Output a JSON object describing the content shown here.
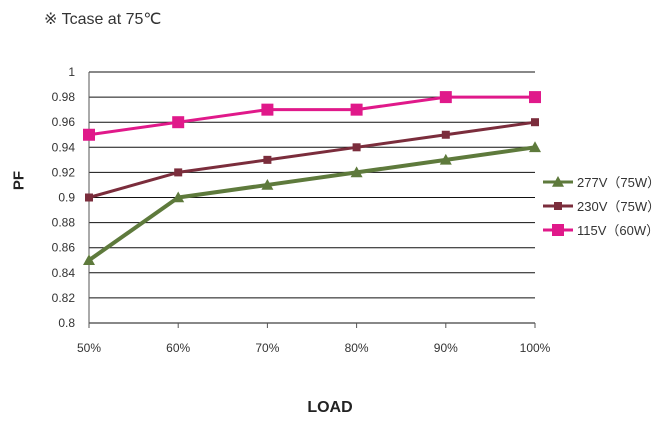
{
  "note": "※ Tcase at 75℃",
  "chart_data": {
    "type": "line",
    "categories": [
      "50%",
      "60%",
      "70%",
      "80%",
      "90%",
      "100%"
    ],
    "xlabel": "LOAD",
    "ylabel": "PF",
    "ylim": [
      0.8,
      1.0
    ],
    "yticks": [
      "1",
      "0.98",
      "0.96",
      "0.94",
      "0.92",
      "0.9",
      "0.88",
      "0.86",
      "0.84",
      "0.82",
      "0.8"
    ],
    "grid": true,
    "legend_position": "right",
    "series": [
      {
        "name": "277V（75W）",
        "color": "#5e7a3c",
        "marker": "triangle",
        "values": [
          0.85,
          0.9,
          0.91,
          0.92,
          0.93,
          0.94
        ]
      },
      {
        "name": "230V（75W）",
        "color": "#7b2d3c",
        "marker": "square",
        "values": [
          0.9,
          0.92,
          0.93,
          0.94,
          0.95,
          0.96
        ]
      },
      {
        "name": "115V（60W）",
        "color": "#e0198a",
        "marker": "square",
        "values": [
          0.95,
          0.96,
          0.97,
          0.97,
          0.98,
          0.98
        ]
      }
    ]
  }
}
